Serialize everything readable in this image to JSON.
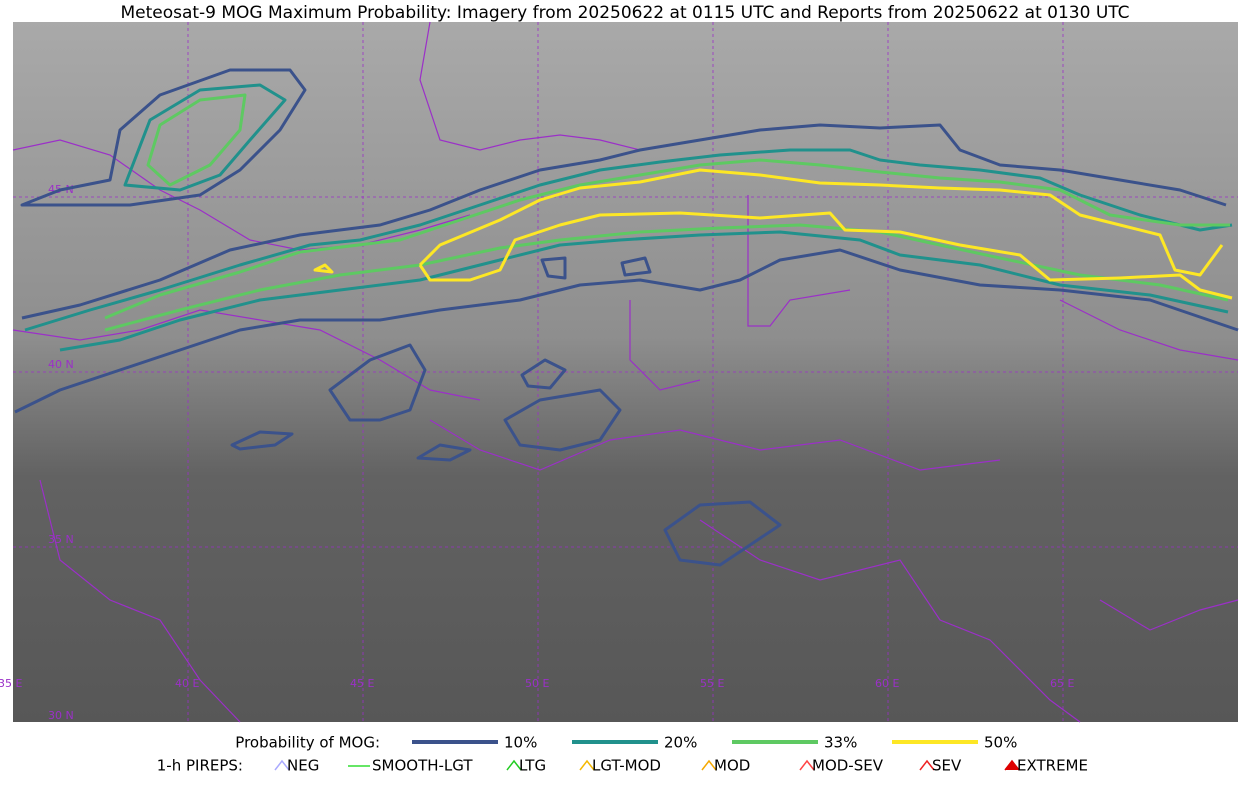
{
  "title": "Meteosat-9 MOG Maximum Probability: Imagery from 20250622 at 0115 UTC and Reports from 20250622 at 0130 UTC",
  "map": {
    "lat_labels": [
      "45 N",
      "40 N",
      "35 N",
      "30 N"
    ],
    "lon_labels": [
      "35 E",
      "40 E",
      "45 E",
      "50 E",
      "55 E",
      "60 E",
      "65 E"
    ]
  },
  "legend": {
    "probability": {
      "label": "Probability of MOG:",
      "items": [
        {
          "label": "10%",
          "color": "#3b528b"
        },
        {
          "label": "20%",
          "color": "#21918c"
        },
        {
          "label": "33%",
          "color": "#5ec962"
        },
        {
          "label": "50%",
          "color": "#fde725"
        }
      ]
    },
    "pireps": {
      "label": "1-h PIREPS:",
      "items": [
        {
          "label": "NEG",
          "color": "#aaaaff"
        },
        {
          "label": "SMOOTH-LGT",
          "color": "#33dd33"
        },
        {
          "label": "LTG",
          "color": "#22cc22"
        },
        {
          "label": "LGT-MOD",
          "color": "#f5b800"
        },
        {
          "label": "MOD",
          "color": "#f5a800"
        },
        {
          "label": "MOD-SEV",
          "color": "#ff4444"
        },
        {
          "label": "SEV",
          "color": "#ee2222"
        },
        {
          "label": "EXTREME",
          "color": "#dd0000"
        }
      ]
    }
  }
}
